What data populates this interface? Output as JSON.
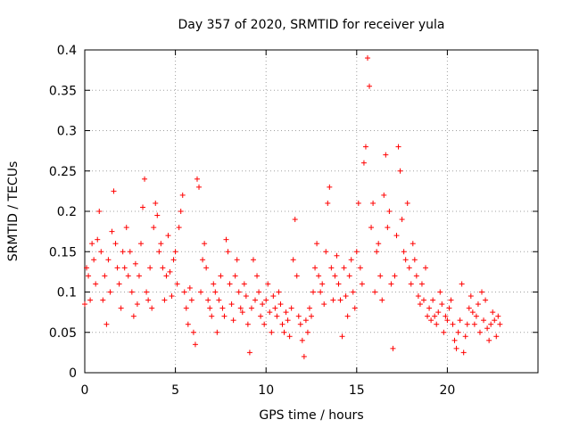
{
  "chart_data": {
    "type": "scatter",
    "title": "Day 357 of 2020, SRMTID for receiver yula",
    "xlabel": "GPS time / hours",
    "ylabel": "SRMTID / TECUs",
    "xlim": [
      0,
      25
    ],
    "ylim": [
      0,
      0.4
    ],
    "xticks": [
      "0",
      "5",
      "10",
      "15",
      "20"
    ],
    "xtick_values": [
      0,
      5,
      10,
      15,
      20
    ],
    "yticks": [
      "0",
      "0.05",
      "0.1",
      "0.15",
      "0.2",
      "0.25",
      "0.3",
      "0.35",
      "0.4"
    ],
    "ytick_values": [
      0,
      0.05,
      0.1,
      0.15,
      0.2,
      0.25,
      0.3,
      0.35,
      0.4
    ],
    "grid": true,
    "marker": "+",
    "marker_color": "#ff0000",
    "series": [
      {
        "name": "SRMTID",
        "points": [
          [
            0.0,
            0.085
          ],
          [
            0.1,
            0.13
          ],
          [
            0.2,
            0.12
          ],
          [
            0.3,
            0.09
          ],
          [
            0.4,
            0.16
          ],
          [
            0.5,
            0.14
          ],
          [
            0.6,
            0.11
          ],
          [
            0.7,
            0.165
          ],
          [
            0.8,
            0.2
          ],
          [
            0.9,
            0.15
          ],
          [
            1.0,
            0.09
          ],
          [
            1.1,
            0.12
          ],
          [
            1.2,
            0.06
          ],
          [
            1.3,
            0.14
          ],
          [
            1.4,
            0.1
          ],
          [
            1.5,
            0.175
          ],
          [
            1.6,
            0.225
          ],
          [
            1.7,
            0.16
          ],
          [
            1.8,
            0.13
          ],
          [
            1.9,
            0.11
          ],
          [
            2.0,
            0.08
          ],
          [
            2.1,
            0.15
          ],
          [
            2.2,
            0.13
          ],
          [
            2.3,
            0.18
          ],
          [
            2.4,
            0.12
          ],
          [
            2.5,
            0.15
          ],
          [
            2.6,
            0.1
          ],
          [
            2.7,
            0.07
          ],
          [
            2.8,
            0.135
          ],
          [
            2.9,
            0.085
          ],
          [
            3.0,
            0.12
          ],
          [
            3.1,
            0.16
          ],
          [
            3.2,
            0.205
          ],
          [
            3.3,
            0.24
          ],
          [
            3.4,
            0.1
          ],
          [
            3.5,
            0.09
          ],
          [
            3.6,
            0.13
          ],
          [
            3.7,
            0.08
          ],
          [
            3.8,
            0.18
          ],
          [
            3.9,
            0.21
          ],
          [
            4.0,
            0.195
          ],
          [
            4.1,
            0.15
          ],
          [
            4.2,
            0.16
          ],
          [
            4.3,
            0.13
          ],
          [
            4.4,
            0.09
          ],
          [
            4.5,
            0.12
          ],
          [
            4.6,
            0.17
          ],
          [
            4.7,
            0.125
          ],
          [
            4.8,
            0.095
          ],
          [
            4.9,
            0.14
          ],
          [
            5.0,
            0.15
          ],
          [
            5.1,
            0.11
          ],
          [
            5.2,
            0.18
          ],
          [
            5.3,
            0.2
          ],
          [
            5.4,
            0.22
          ],
          [
            5.5,
            0.1
          ],
          [
            5.6,
            0.08
          ],
          [
            5.7,
            0.06
          ],
          [
            5.8,
            0.105
          ],
          [
            5.9,
            0.09
          ],
          [
            6.0,
            0.05
          ],
          [
            6.1,
            0.035
          ],
          [
            6.2,
            0.24
          ],
          [
            6.3,
            0.23
          ],
          [
            6.4,
            0.1
          ],
          [
            6.5,
            0.14
          ],
          [
            6.6,
            0.16
          ],
          [
            6.7,
            0.13
          ],
          [
            6.8,
            0.09
          ],
          [
            6.9,
            0.08
          ],
          [
            7.0,
            0.07
          ],
          [
            7.1,
            0.11
          ],
          [
            7.2,
            0.1
          ],
          [
            7.3,
            0.05
          ],
          [
            7.4,
            0.09
          ],
          [
            7.5,
            0.12
          ],
          [
            7.6,
            0.08
          ],
          [
            7.7,
            0.07
          ],
          [
            7.8,
            0.165
          ],
          [
            7.9,
            0.15
          ],
          [
            8.0,
            0.11
          ],
          [
            8.1,
            0.085
          ],
          [
            8.2,
            0.065
          ],
          [
            8.3,
            0.12
          ],
          [
            8.4,
            0.14
          ],
          [
            8.5,
            0.1
          ],
          [
            8.6,
            0.08
          ],
          [
            8.7,
            0.075
          ],
          [
            8.8,
            0.11
          ],
          [
            8.9,
            0.095
          ],
          [
            9.0,
            0.06
          ],
          [
            9.1,
            0.025
          ],
          [
            9.2,
            0.08
          ],
          [
            9.3,
            0.14
          ],
          [
            9.4,
            0.09
          ],
          [
            9.5,
            0.12
          ],
          [
            9.6,
            0.1
          ],
          [
            9.7,
            0.07
          ],
          [
            9.8,
            0.085
          ],
          [
            9.9,
            0.06
          ],
          [
            10.0,
            0.09
          ],
          [
            10.1,
            0.11
          ],
          [
            10.2,
            0.075
          ],
          [
            10.3,
            0.05
          ],
          [
            10.4,
            0.095
          ],
          [
            10.5,
            0.08
          ],
          [
            10.6,
            0.07
          ],
          [
            10.7,
            0.1
          ],
          [
            10.8,
            0.085
          ],
          [
            10.9,
            0.06
          ],
          [
            11.0,
            0.05
          ],
          [
            11.1,
            0.075
          ],
          [
            11.2,
            0.065
          ],
          [
            11.3,
            0.045
          ],
          [
            11.4,
            0.08
          ],
          [
            11.5,
            0.14
          ],
          [
            11.6,
            0.19
          ],
          [
            11.7,
            0.12
          ],
          [
            11.8,
            0.07
          ],
          [
            11.9,
            0.06
          ],
          [
            12.0,
            0.04
          ],
          [
            12.1,
            0.02
          ],
          [
            12.2,
            0.065
          ],
          [
            12.3,
            0.05
          ],
          [
            12.4,
            0.08
          ],
          [
            12.5,
            0.07
          ],
          [
            12.6,
            0.1
          ],
          [
            12.7,
            0.13
          ],
          [
            12.8,
            0.16
          ],
          [
            12.9,
            0.12
          ],
          [
            13.0,
            0.1
          ],
          [
            13.1,
            0.11
          ],
          [
            13.2,
            0.085
          ],
          [
            13.3,
            0.15
          ],
          [
            13.4,
            0.21
          ],
          [
            13.5,
            0.23
          ],
          [
            13.6,
            0.13
          ],
          [
            13.7,
            0.09
          ],
          [
            13.8,
            0.12
          ],
          [
            13.9,
            0.145
          ],
          [
            14.0,
            0.11
          ],
          [
            14.1,
            0.09
          ],
          [
            14.2,
            0.045
          ],
          [
            14.3,
            0.13
          ],
          [
            14.4,
            0.095
          ],
          [
            14.5,
            0.07
          ],
          [
            14.6,
            0.12
          ],
          [
            14.7,
            0.14
          ],
          [
            14.8,
            0.1
          ],
          [
            14.9,
            0.08
          ],
          [
            15.0,
            0.15
          ],
          [
            15.1,
            0.21
          ],
          [
            15.2,
            0.13
          ],
          [
            15.3,
            0.11
          ],
          [
            15.4,
            0.26
          ],
          [
            15.5,
            0.28
          ],
          [
            15.6,
            0.39
          ],
          [
            15.7,
            0.355
          ],
          [
            15.8,
            0.18
          ],
          [
            15.9,
            0.21
          ],
          [
            16.0,
            0.1
          ],
          [
            16.1,
            0.15
          ],
          [
            16.2,
            0.16
          ],
          [
            16.3,
            0.12
          ],
          [
            16.4,
            0.09
          ],
          [
            16.5,
            0.22
          ],
          [
            16.6,
            0.27
          ],
          [
            16.7,
            0.18
          ],
          [
            16.8,
            0.2
          ],
          [
            16.9,
            0.11
          ],
          [
            17.0,
            0.03
          ],
          [
            17.1,
            0.12
          ],
          [
            17.2,
            0.17
          ],
          [
            17.3,
            0.28
          ],
          [
            17.4,
            0.25
          ],
          [
            17.5,
            0.19
          ],
          [
            17.6,
            0.15
          ],
          [
            17.7,
            0.14
          ],
          [
            17.8,
            0.21
          ],
          [
            17.9,
            0.13
          ],
          [
            18.0,
            0.11
          ],
          [
            18.1,
            0.16
          ],
          [
            18.2,
            0.14
          ],
          [
            18.3,
            0.12
          ],
          [
            18.4,
            0.095
          ],
          [
            18.5,
            0.085
          ],
          [
            18.6,
            0.11
          ],
          [
            18.7,
            0.09
          ],
          [
            18.8,
            0.13
          ],
          [
            18.9,
            0.07
          ],
          [
            19.0,
            0.08
          ],
          [
            19.1,
            0.065
          ],
          [
            19.2,
            0.09
          ],
          [
            19.3,
            0.07
          ],
          [
            19.4,
            0.06
          ],
          [
            19.5,
            0.075
          ],
          [
            19.6,
            0.1
          ],
          [
            19.7,
            0.085
          ],
          [
            19.8,
            0.05
          ],
          [
            19.9,
            0.07
          ],
          [
            20.0,
            0.065
          ],
          [
            20.1,
            0.08
          ],
          [
            20.2,
            0.09
          ],
          [
            20.3,
            0.06
          ],
          [
            20.4,
            0.04
          ],
          [
            20.5,
            0.03
          ],
          [
            20.6,
            0.05
          ],
          [
            20.7,
            0.065
          ],
          [
            20.8,
            0.11
          ],
          [
            20.9,
            0.025
          ],
          [
            21.0,
            0.045
          ],
          [
            21.1,
            0.06
          ],
          [
            21.2,
            0.08
          ],
          [
            21.3,
            0.095
          ],
          [
            21.4,
            0.075
          ],
          [
            21.5,
            0.06
          ],
          [
            21.6,
            0.07
          ],
          [
            21.7,
            0.085
          ],
          [
            21.8,
            0.05
          ],
          [
            21.9,
            0.1
          ],
          [
            22.0,
            0.065
          ],
          [
            22.1,
            0.09
          ],
          [
            22.2,
            0.055
          ],
          [
            22.3,
            0.04
          ],
          [
            22.4,
            0.06
          ],
          [
            22.5,
            0.075
          ],
          [
            22.6,
            0.065
          ],
          [
            22.7,
            0.045
          ],
          [
            22.8,
            0.07
          ],
          [
            22.9,
            0.06
          ]
        ]
      }
    ]
  }
}
